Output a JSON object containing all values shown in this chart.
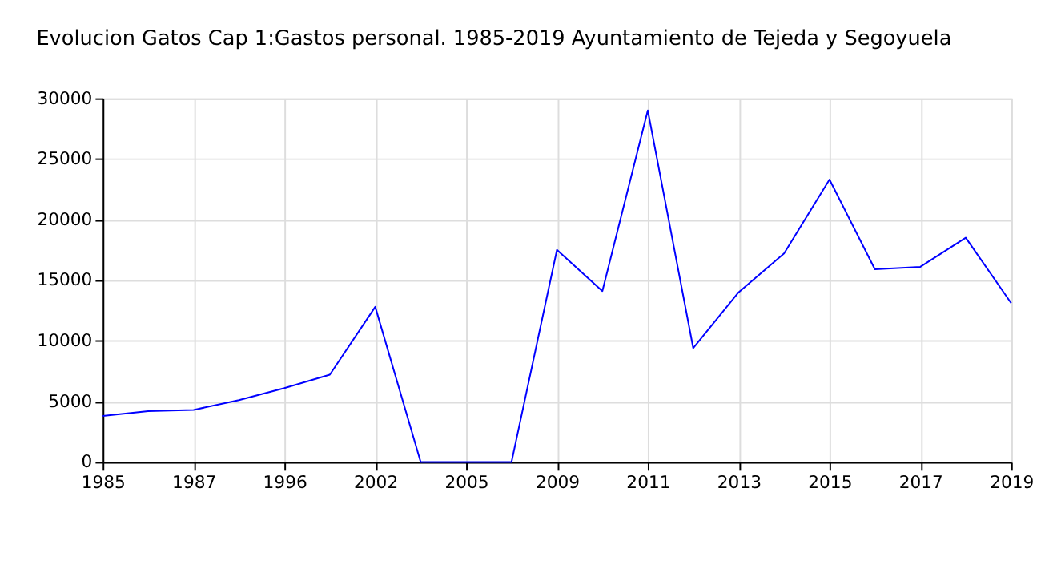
{
  "chart_data": {
    "type": "line",
    "title": "Evolucion Gatos Cap 1:Gastos personal. 1985-2019 Ayuntamiento de Tejeda y Segoyuela",
    "categories": [
      "1985",
      null,
      "1987",
      null,
      "1996",
      null,
      "2002",
      null,
      "2005",
      null,
      "2009",
      null,
      "2011",
      null,
      "2013",
      null,
      "2015",
      null,
      "2017",
      null,
      "2019"
    ],
    "series": [
      {
        "color": "#0000ff",
        "values": [
          3800,
          4200,
          4300,
          5100,
          6100,
          7200,
          12800,
          0,
          0,
          0,
          17500,
          14100,
          29000,
          9400,
          14000,
          17200,
          23300,
          15900,
          16100,
          18500,
          13100
        ]
      }
    ],
    "ylim": [
      0,
      30000
    ],
    "yticks": [
      0,
      5000,
      10000,
      15000,
      20000,
      25000,
      30000
    ],
    "grid": true,
    "marker": "none",
    "line_style": "solid"
  }
}
